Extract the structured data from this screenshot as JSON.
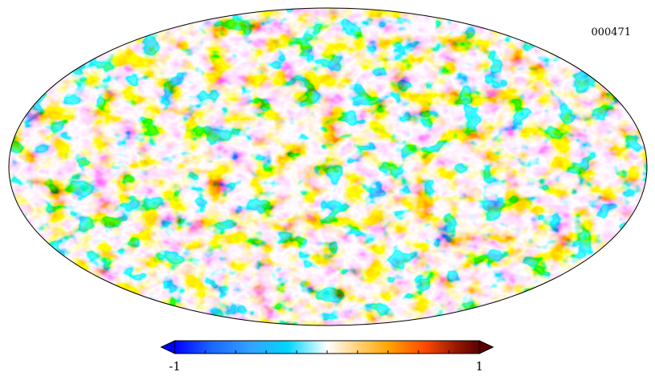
{
  "map": {
    "label": "000471",
    "projection": "Mollweide",
    "colormap": [
      "#0000ff",
      "#1a66ff",
      "#33a3ff",
      "#00d5ff",
      "#ffffff",
      "#ffd27a",
      "#ffa500",
      "#ff4a00",
      "#9a1a00",
      "#5a0000"
    ]
  },
  "colorbar": {
    "min_label": "-1",
    "max_label": "1",
    "min": -1,
    "max": 1,
    "ticks": 9
  }
}
